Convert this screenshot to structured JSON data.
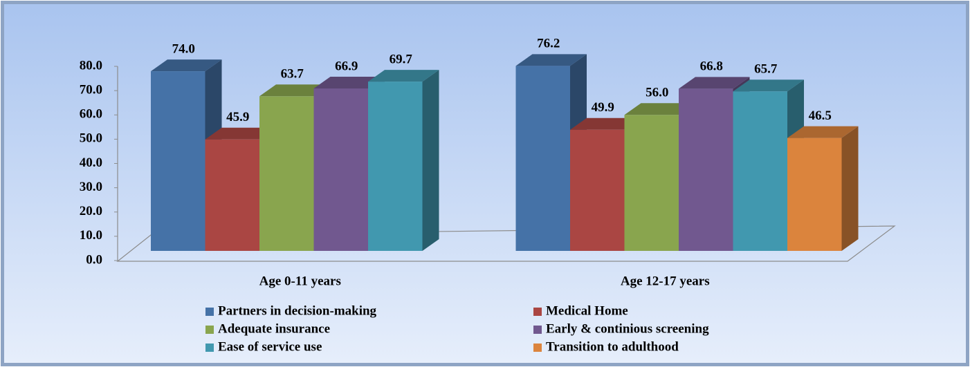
{
  "chart_data": {
    "type": "bar3d",
    "categories": [
      "Age 0-11 years",
      "Age 12-17 years"
    ],
    "series": [
      {
        "name": "Partners in decision-making",
        "color": "#4572a7",
        "values": [
          74.0,
          76.2
        ],
        "value_labels": [
          "74.0",
          "76.2"
        ]
      },
      {
        "name": "Medical Home",
        "color": "#aa4643",
        "values": [
          45.9,
          49.9
        ],
        "value_labels": [
          "45.9",
          "49.9"
        ]
      },
      {
        "name": "Adequate insurance",
        "color": "#89a54e",
        "values": [
          63.7,
          56.0
        ],
        "value_labels": [
          "63.7",
          "56.0"
        ]
      },
      {
        "name": "Early & continious screening",
        "color": "#71588f",
        "values": [
          66.9,
          66.8
        ],
        "value_labels": [
          "66.9",
          "66.8"
        ]
      },
      {
        "name": "Ease of service use",
        "color": "#4198af",
        "values": [
          69.7,
          65.7
        ],
        "value_labels": [
          "69.7",
          "65.7"
        ]
      },
      {
        "name": "Transition to adulthood",
        "color": "#db843d",
        "values": [
          null,
          46.5
        ],
        "value_labels": [
          null,
          "46.5"
        ]
      }
    ],
    "ylim": [
      0,
      80
    ],
    "yticks": [
      {
        "value": 0,
        "label": "0.0"
      },
      {
        "value": 10,
        "label": "10.0"
      },
      {
        "value": 20,
        "label": "20.0"
      },
      {
        "value": 30,
        "label": "30.0"
      },
      {
        "value": 40,
        "label": "40.0"
      },
      {
        "value": 50,
        "label": "50.0"
      },
      {
        "value": 60,
        "label": "60.0"
      },
      {
        "value": 70,
        "label": "70.0"
      },
      {
        "value": 80,
        "label": "80.0"
      }
    ],
    "legend": "bottom"
  }
}
